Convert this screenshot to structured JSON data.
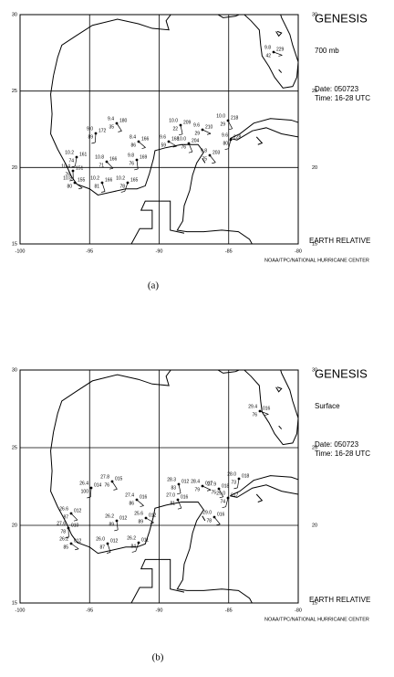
{
  "figure": {
    "panels": [
      {
        "label": "(a)",
        "title": "GENESIS",
        "level": "700 mb",
        "date": "Date: 050723",
        "time": "Time: 16-28 UTC",
        "frame": "EARTH RELATIVE",
        "credit": "NOAA/TPC/NATIONAL HURRICANE CENTER",
        "xticks": [
          "-100",
          "-95",
          "-90",
          "-85",
          "-80"
        ],
        "yticks": [
          "30",
          "25",
          "20",
          "15"
        ],
        "stations": [
          {
            "t": "9.8",
            "d": "229",
            "h": "42"
          },
          {
            "t": "9.4",
            "d": "180",
            "h": "35"
          },
          {
            "t": "9.0",
            "d": "172",
            "h": "89"
          },
          {
            "t": "8.4",
            "d": "166",
            "h": "86"
          },
          {
            "t": "10.0",
            "d": "209",
            "h": "22"
          },
          {
            "t": "9.6",
            "d": "210",
            "h": "29"
          },
          {
            "t": "10.0",
            "d": "218",
            "h": "29"
          },
          {
            "t": "10.2",
            "d": "161",
            "h": "74"
          },
          {
            "t": "10.8",
            "d": "166",
            "h": "71"
          },
          {
            "t": "9.8",
            "d": "169",
            "h": "76"
          },
          {
            "t": "9.6",
            "d": "168",
            "h": "59"
          },
          {
            "t": "10.0",
            "d": "204",
            "h": "76"
          },
          {
            "t": "9.6",
            "d": "228",
            "h": "80"
          },
          {
            "t": "9.8",
            "d": "203",
            "h": "75"
          },
          {
            "t": "10.4",
            "d": "151",
            "h": "76"
          },
          {
            "t": "10.8",
            "d": "155",
            "h": "80"
          },
          {
            "t": "10.2",
            "d": "166",
            "h": "81"
          },
          {
            "t": "10.2",
            "d": "165",
            "h": "78"
          }
        ]
      },
      {
        "label": "(b)",
        "title": "GENESIS",
        "level": "Surface",
        "date": "Date: 050723",
        "time": "Time: 16-28 UTC",
        "frame": "EARTH RELATIVE",
        "credit": "NOAA/TPC/NATIONAL HURRICANE CENTER",
        "xticks": [
          "-100",
          "-95",
          "-90",
          "-85",
          "-80"
        ],
        "yticks": [
          "30",
          "25",
          "20",
          "15"
        ],
        "stations": [
          {
            "t": "29.4",
            "d": "016",
            "h": "76"
          },
          {
            "t": "27.8",
            "d": "015",
            "h": "76"
          },
          {
            "t": "26.4",
            "d": "014",
            "h": "100"
          },
          {
            "t": "27.4",
            "d": "016",
            "h": "86"
          },
          {
            "t": "28.3",
            "d": "012",
            "h": "83"
          },
          {
            "t": "28.4",
            "d": "017",
            "h": "79"
          },
          {
            "t": "27.9",
            "d": "018",
            "h": "75"
          },
          {
            "t": "28.0",
            "d": "018",
            "h": "73"
          },
          {
            "t": "26.6",
            "d": "012",
            "h": "87"
          },
          {
            "t": "26.2",
            "d": "012",
            "h": "89"
          },
          {
            "t": "25.6",
            "d": "012",
            "h": "89"
          },
          {
            "t": "27.0",
            "d": "016",
            "h": "81"
          },
          {
            "t": "29.0",
            "d": "017",
            "h": "74"
          },
          {
            "t": "29.0",
            "d": "016",
            "h": "78"
          },
          {
            "t": "27.6",
            "d": "010",
            "h": "78"
          },
          {
            "t": "26.2",
            "d": "012",
            "h": "85"
          },
          {
            "t": "26.0",
            "d": "012",
            "h": "87"
          },
          {
            "t": "26.2",
            "d": "011",
            "h": "84"
          }
        ]
      }
    ]
  }
}
